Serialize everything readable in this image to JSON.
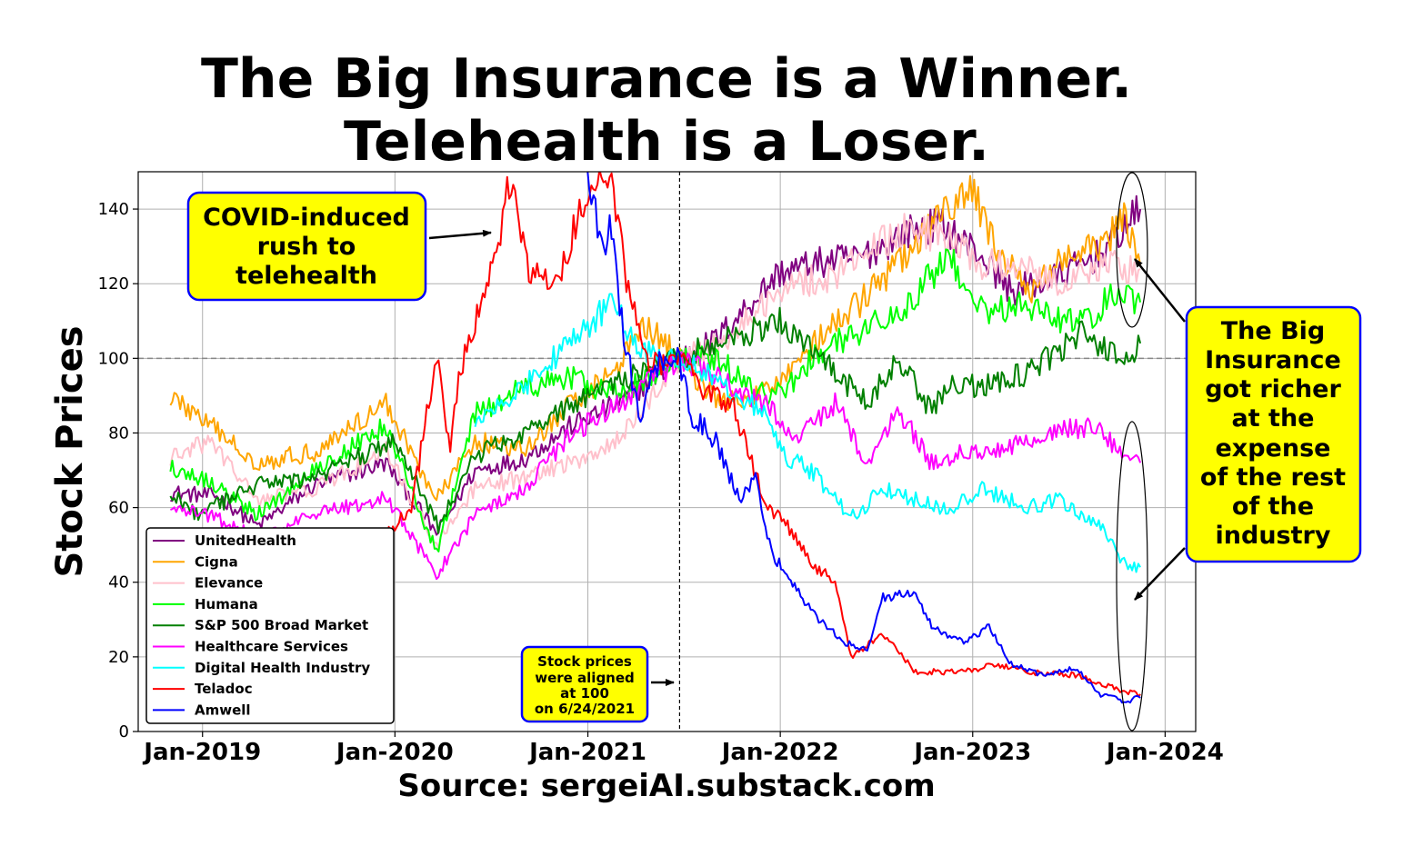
{
  "title_lines": [
    "The Big Insurance is a Winner.",
    "Telehealth is a Loser."
  ],
  "source_text": "Source: sergeiAI.substack.com",
  "chart_data": {
    "type": "line",
    "title": "The Big Insurance is a Winner. Telehealth is a Loser.",
    "xlabel": "",
    "ylabel": "Stock Prices",
    "xlim": [
      "2018-09-01",
      "2024-02-28"
    ],
    "ylim": [
      0,
      150
    ],
    "x_ticks": [
      "Jan-2019",
      "Jan-2020",
      "Jan-2021",
      "Jan-2022",
      "Jan-2023",
      "Jan-2024"
    ],
    "y_ticks": [
      0,
      20,
      40,
      60,
      80,
      100,
      120,
      140
    ],
    "grid": true,
    "legend_position": "lower-left",
    "reference_line": {
      "y": 100,
      "style": "dashed",
      "color": "#888888"
    },
    "alignment_date": "2021-06-24",
    "series": [
      {
        "name": "UnitedHealth",
        "color": "#800080",
        "points": [
          [
            "2018-11-01",
            64
          ],
          [
            "2019-02-01",
            63
          ],
          [
            "2019-04-15",
            55
          ],
          [
            "2019-08-01",
            66
          ],
          [
            "2019-12-15",
            72
          ],
          [
            "2020-03-20",
            53
          ],
          [
            "2020-06-01",
            70
          ],
          [
            "2020-09-01",
            73
          ],
          [
            "2020-12-01",
            82
          ],
          [
            "2021-01-15",
            85
          ],
          [
            "2021-03-01",
            88
          ],
          [
            "2021-06-24",
            100
          ],
          [
            "2021-09-01",
            105
          ],
          [
            "2021-12-31",
            123
          ],
          [
            "2022-04-01",
            126
          ],
          [
            "2022-06-01",
            127
          ],
          [
            "2022-09-01",
            134
          ],
          [
            "2022-11-01",
            136
          ],
          [
            "2023-01-15",
            128
          ],
          [
            "2023-03-15",
            118
          ],
          [
            "2023-06-01",
            121
          ],
          [
            "2023-09-01",
            128
          ],
          [
            "2023-11-15",
            140
          ]
        ]
      },
      {
        "name": "Cigna",
        "color": "#ffa500",
        "points": [
          [
            "2018-11-01",
            90
          ],
          [
            "2019-01-15",
            82
          ],
          [
            "2019-04-15",
            72
          ],
          [
            "2019-08-01",
            75
          ],
          [
            "2019-12-15",
            88
          ],
          [
            "2020-03-20",
            62
          ],
          [
            "2020-06-01",
            78
          ],
          [
            "2020-09-01",
            75
          ],
          [
            "2020-12-01",
            88
          ],
          [
            "2021-03-01",
            98
          ],
          [
            "2021-04-15",
            110
          ],
          [
            "2021-06-24",
            100
          ],
          [
            "2021-09-01",
            89
          ],
          [
            "2021-11-01",
            88
          ],
          [
            "2022-01-01",
            95
          ],
          [
            "2022-03-15",
            105
          ],
          [
            "2022-06-01",
            115
          ],
          [
            "2022-09-01",
            128
          ],
          [
            "2022-11-15",
            140
          ],
          [
            "2022-12-31",
            145
          ],
          [
            "2023-02-15",
            130
          ],
          [
            "2023-04-15",
            117
          ],
          [
            "2023-06-01",
            125
          ],
          [
            "2023-09-01",
            130
          ],
          [
            "2023-10-15",
            137
          ],
          [
            "2023-11-15",
            125
          ]
        ]
      },
      {
        "name": "Elevance",
        "color": "#ffc0cb",
        "points": [
          [
            "2018-11-01",
            73
          ],
          [
            "2019-01-15",
            78
          ],
          [
            "2019-04-15",
            62
          ],
          [
            "2019-08-01",
            65
          ],
          [
            "2019-12-15",
            75
          ],
          [
            "2020-03-20",
            50
          ],
          [
            "2020-06-01",
            65
          ],
          [
            "2020-09-01",
            68
          ],
          [
            "2020-12-01",
            72
          ],
          [
            "2021-03-01",
            78
          ],
          [
            "2021-06-24",
            100
          ],
          [
            "2021-09-01",
            103
          ],
          [
            "2022-01-15",
            120
          ],
          [
            "2022-04-15",
            122
          ],
          [
            "2022-06-01",
            128
          ],
          [
            "2022-09-01",
            135
          ],
          [
            "2022-11-15",
            132
          ],
          [
            "2023-01-15",
            125
          ],
          [
            "2023-04-15",
            125
          ],
          [
            "2023-06-15",
            120
          ],
          [
            "2023-09-01",
            125
          ],
          [
            "2023-11-15",
            124
          ]
        ]
      },
      {
        "name": "Humana",
        "color": "#00ff00",
        "points": [
          [
            "2018-11-01",
            71
          ],
          [
            "2019-01-15",
            67
          ],
          [
            "2019-04-15",
            58
          ],
          [
            "2019-08-01",
            70
          ],
          [
            "2019-12-15",
            82
          ],
          [
            "2020-03-20",
            48
          ],
          [
            "2020-06-01",
            85
          ],
          [
            "2020-09-01",
            92
          ],
          [
            "2020-12-01",
            95
          ],
          [
            "2021-01-15",
            92
          ],
          [
            "2021-03-01",
            90
          ],
          [
            "2021-06-24",
            100
          ],
          [
            "2021-09-01",
            100
          ],
          [
            "2021-12-01",
            90
          ],
          [
            "2022-01-15",
            92
          ],
          [
            "2022-03-15",
            102
          ],
          [
            "2022-06-15",
            108
          ],
          [
            "2022-09-01",
            115
          ],
          [
            "2022-11-15",
            127
          ],
          [
            "2023-02-01",
            112
          ],
          [
            "2023-04-15",
            115
          ],
          [
            "2023-06-01",
            110
          ],
          [
            "2023-08-01",
            110
          ],
          [
            "2023-10-01",
            118
          ],
          [
            "2023-11-15",
            115
          ]
        ]
      },
      {
        "name": "S&P 500 Broad Market",
        "color": "#008000",
        "points": [
          [
            "2018-11-01",
            64
          ],
          [
            "2018-12-24",
            58
          ],
          [
            "2019-04-15",
            66
          ],
          [
            "2019-08-01",
            68
          ],
          [
            "2019-12-31",
            78
          ],
          [
            "2020-03-23",
            55
          ],
          [
            "2020-06-01",
            74
          ],
          [
            "2020-09-01",
            80
          ],
          [
            "2020-12-31",
            90
          ],
          [
            "2021-03-01",
            94
          ],
          [
            "2021-06-24",
            100
          ],
          [
            "2021-09-01",
            104
          ],
          [
            "2021-12-31",
            110
          ],
          [
            "2022-03-01",
            102
          ],
          [
            "2022-06-15",
            88
          ],
          [
            "2022-08-15",
            100
          ],
          [
            "2022-10-12",
            86
          ],
          [
            "2022-12-01",
            94
          ],
          [
            "2023-01-15",
            92
          ],
          [
            "2023-04-15",
            96
          ],
          [
            "2023-07-31",
            107
          ],
          [
            "2023-10-27",
            98
          ],
          [
            "2023-11-15",
            104
          ]
        ]
      },
      {
        "name": "Healthcare Services",
        "color": "#ff00ff",
        "points": [
          [
            "2018-11-01",
            60
          ],
          [
            "2019-01-15",
            58
          ],
          [
            "2019-04-15",
            52
          ],
          [
            "2019-08-01",
            58
          ],
          [
            "2019-12-15",
            63
          ],
          [
            "2020-03-20",
            42
          ],
          [
            "2020-06-01",
            58
          ],
          [
            "2020-09-01",
            65
          ],
          [
            "2020-12-01",
            80
          ],
          [
            "2021-03-01",
            88
          ],
          [
            "2021-06-24",
            100
          ],
          [
            "2021-09-01",
            95
          ],
          [
            "2021-12-01",
            88
          ],
          [
            "2022-02-01",
            78
          ],
          [
            "2022-04-15",
            88
          ],
          [
            "2022-06-15",
            72
          ],
          [
            "2022-08-15",
            86
          ],
          [
            "2022-10-15",
            72
          ],
          [
            "2022-12-15",
            75
          ],
          [
            "2023-03-01",
            76
          ],
          [
            "2023-06-01",
            80
          ],
          [
            "2023-08-15",
            82
          ],
          [
            "2023-10-15",
            74
          ],
          [
            "2023-11-15",
            72
          ]
        ]
      },
      {
        "name": "Digital Health Industry",
        "color": "#00ffff",
        "points": [
          [
            "2020-06-01",
            82
          ],
          [
            "2020-09-01",
            92
          ],
          [
            "2020-12-01",
            105
          ],
          [
            "2021-02-15",
            115
          ],
          [
            "2021-04-15",
            102
          ],
          [
            "2021-06-24",
            100
          ],
          [
            "2021-09-01",
            95
          ],
          [
            "2021-12-01",
            85
          ],
          [
            "2022-01-15",
            73
          ],
          [
            "2022-03-01",
            70
          ],
          [
            "2022-05-15",
            57
          ],
          [
            "2022-07-15",
            65
          ],
          [
            "2022-09-15",
            62
          ],
          [
            "2022-11-15",
            59
          ],
          [
            "2023-01-15",
            65
          ],
          [
            "2023-04-15",
            60
          ],
          [
            "2023-06-15",
            62
          ],
          [
            "2023-09-01",
            55
          ],
          [
            "2023-10-15",
            45
          ],
          [
            "2023-11-15",
            44
          ]
        ]
      },
      {
        "name": "Teladoc",
        "color": "#ff0000",
        "points": [
          [
            "2019-12-01",
            50
          ],
          [
            "2020-02-01",
            60
          ],
          [
            "2020-03-20",
            100
          ],
          [
            "2020-04-15",
            75
          ],
          [
            "2020-05-01",
            95
          ],
          [
            "2020-06-01",
            110
          ],
          [
            "2020-07-15",
            130
          ],
          [
            "2020-08-01",
            150
          ],
          [
            "2020-09-15",
            122
          ],
          [
            "2020-11-01",
            120
          ],
          [
            "2020-12-31",
            145
          ],
          [
            "2021-02-15",
            150
          ],
          [
            "2021-03-15",
            120
          ],
          [
            "2021-05-01",
            98
          ],
          [
            "2021-06-24",
            100
          ],
          [
            "2021-08-15",
            90
          ],
          [
            "2021-10-01",
            88
          ],
          [
            "2021-12-01",
            62
          ],
          [
            "2022-01-15",
            55
          ],
          [
            "2022-03-01",
            45
          ],
          [
            "2022-04-15",
            40
          ],
          [
            "2022-05-15",
            20
          ],
          [
            "2022-07-15",
            26
          ],
          [
            "2022-09-15",
            16
          ],
          [
            "2022-12-15",
            16
          ],
          [
            "2023-02-15",
            18
          ],
          [
            "2023-04-15",
            16
          ],
          [
            "2023-07-15",
            15
          ],
          [
            "2023-09-15",
            12
          ],
          [
            "2023-11-15",
            10
          ]
        ]
      },
      {
        "name": "Amwell",
        "color": "#0000ff",
        "points": [
          [
            "2020-12-31",
            150
          ],
          [
            "2021-01-31",
            128
          ],
          [
            "2021-02-15",
            136
          ],
          [
            "2021-03-10",
            105
          ],
          [
            "2021-04-15",
            82
          ],
          [
            "2021-05-01",
            98
          ],
          [
            "2021-06-24",
            100
          ],
          [
            "2021-07-15",
            85
          ],
          [
            "2021-09-01",
            78
          ],
          [
            "2021-10-15",
            62
          ],
          [
            "2021-11-15",
            68
          ],
          [
            "2021-12-15",
            48
          ],
          [
            "2022-02-01",
            38
          ],
          [
            "2022-03-15",
            30
          ],
          [
            "2022-05-01",
            24
          ],
          [
            "2022-06-15",
            22
          ],
          [
            "2022-07-15",
            36
          ],
          [
            "2022-09-15",
            37
          ],
          [
            "2022-10-15",
            28
          ],
          [
            "2022-12-15",
            24
          ],
          [
            "2023-02-01",
            28
          ],
          [
            "2023-03-15",
            18
          ],
          [
            "2023-05-15",
            15
          ],
          [
            "2023-07-15",
            17
          ],
          [
            "2023-09-01",
            10
          ],
          [
            "2023-10-15",
            8
          ],
          [
            "2023-11-15",
            9
          ]
        ]
      }
    ]
  },
  "annotations": {
    "covid_box": [
      "COVID-induced",
      "rush to",
      "telehealth"
    ],
    "insurance_box": [
      "The Big",
      "Insurance",
      "got richer",
      "at the",
      "expense",
      "of the rest",
      "of the",
      "industry"
    ],
    "aligned_box": [
      "Stock prices",
      "were aligned",
      "at 100",
      "on 6/24/2021"
    ]
  }
}
